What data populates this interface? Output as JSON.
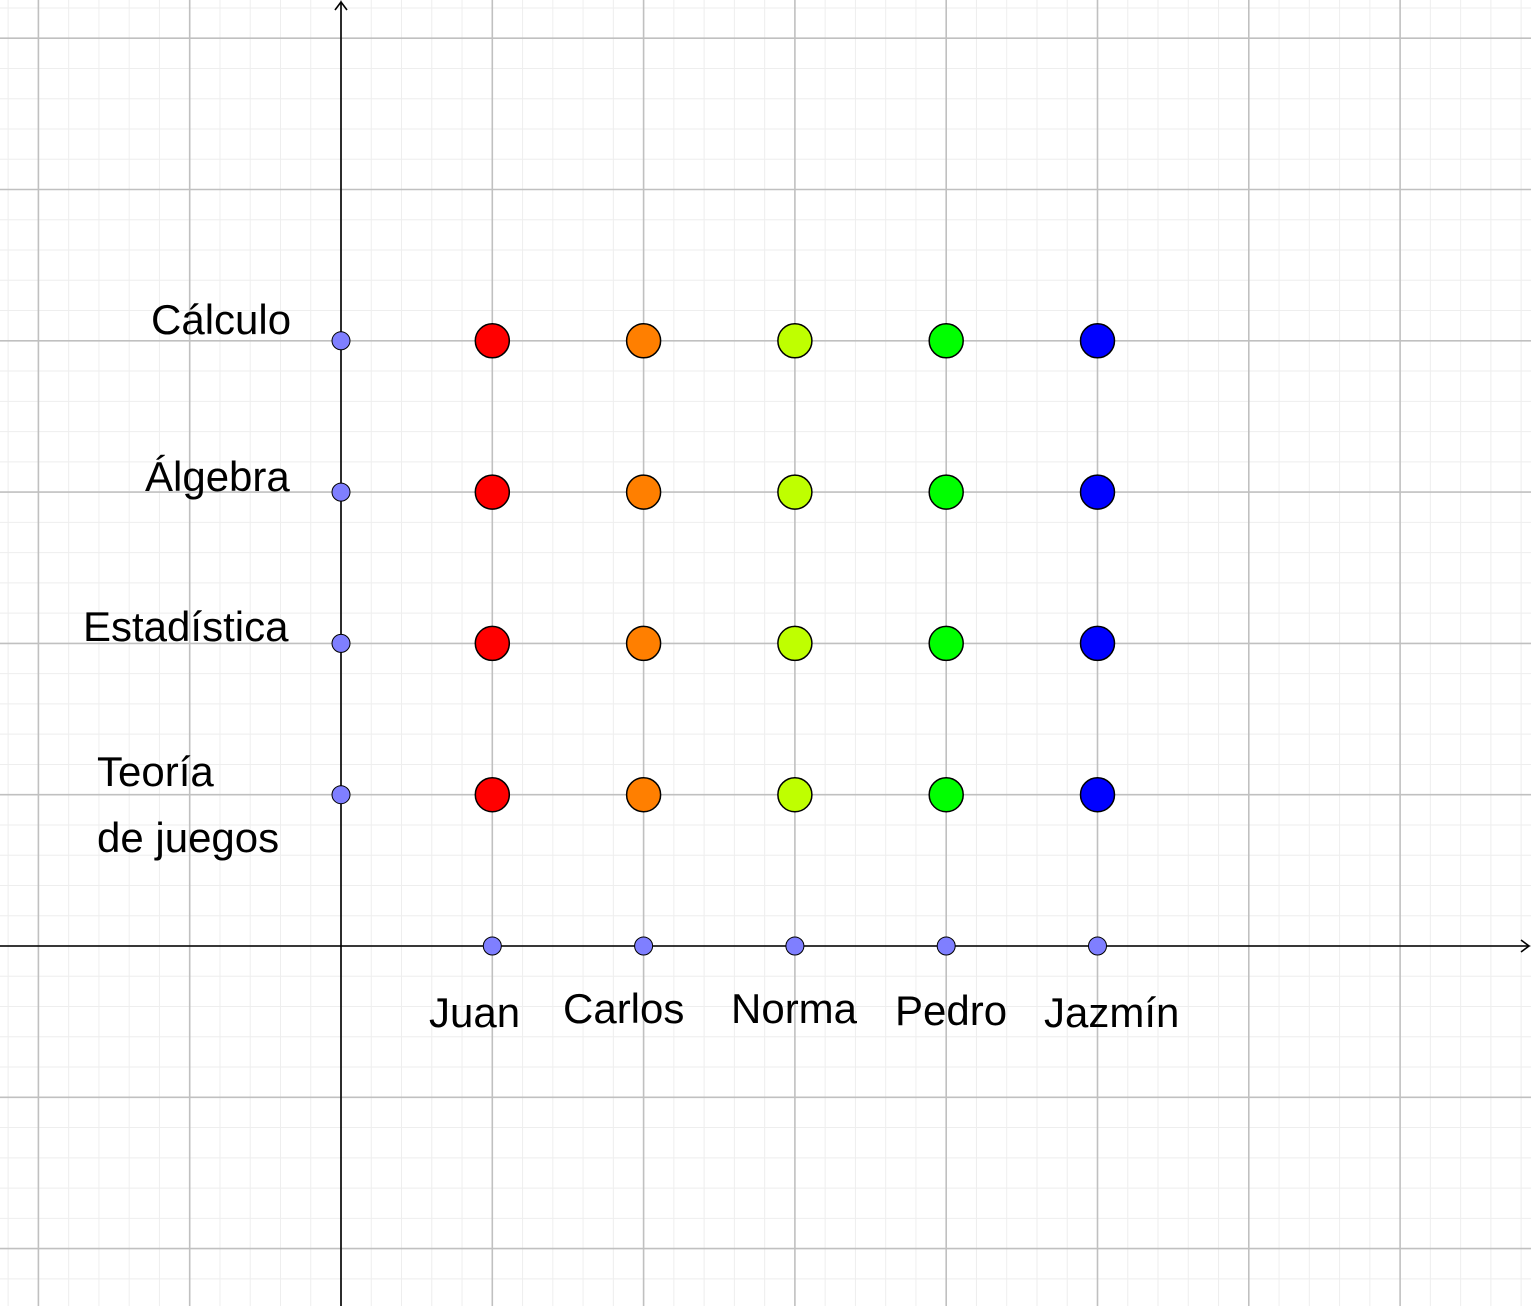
{
  "subjects": [
    {
      "lines": [
        "Cálculo"
      ]
    },
    {
      "lines": [
        "Álgebra"
      ]
    },
    {
      "lines": [
        "Estadística"
      ]
    },
    {
      "lines": [
        "Teoría",
        "de juegos"
      ]
    }
  ],
  "students": [
    {
      "name": "Juan",
      "color": "#ff0000"
    },
    {
      "name": "Carlos",
      "color": "#ff7f00"
    },
    {
      "name": "Norma",
      "color": "#bfff00"
    },
    {
      "name": "Pedro",
      "color": "#00ff00"
    },
    {
      "name": "Jazmín",
      "color": "#0000ff"
    }
  ],
  "colors": {
    "axis_point": "#7f7fff",
    "grid_major": "#c0c0c0",
    "grid_minor": "#eeeeee",
    "axis": "#000000"
  }
}
